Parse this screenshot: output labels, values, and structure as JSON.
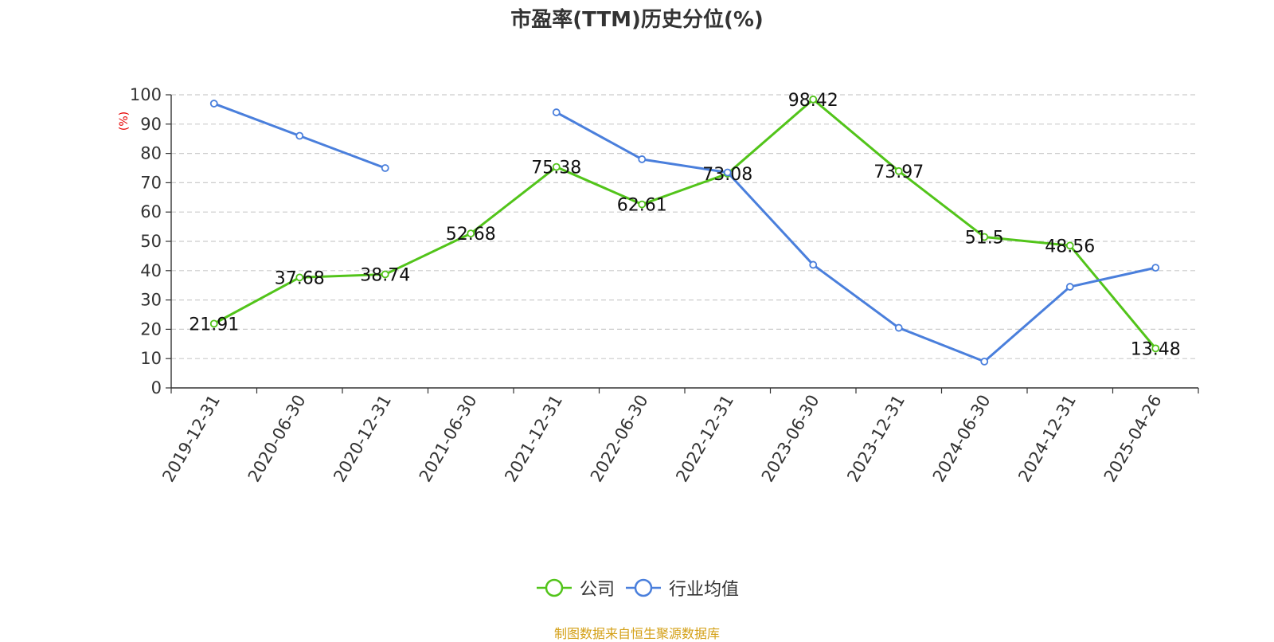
{
  "chart_data": {
    "type": "line",
    "title": "市盈率(TTM)历史分位(%)",
    "ylabel": "(%)",
    "xlabel": "",
    "ylim": [
      0,
      100
    ],
    "yticks": [
      0,
      10,
      20,
      30,
      40,
      50,
      60,
      70,
      80,
      90,
      100
    ],
    "categories": [
      "2019-12-31",
      "2020-06-30",
      "2020-12-31",
      "2021-06-30",
      "2021-12-31",
      "2022-06-30",
      "2022-12-31",
      "2023-06-30",
      "2023-12-31",
      "2024-06-30",
      "2024-12-31",
      "2025-04-26"
    ],
    "grid": true,
    "legend_position": "bottom",
    "series": [
      {
        "name": "公司",
        "color": "#52c41a",
        "show_labels": true,
        "values": [
          21.91,
          37.68,
          38.74,
          52.68,
          75.38,
          62.61,
          73.08,
          98.42,
          73.97,
          51.5,
          48.56,
          13.48
        ],
        "labels": [
          "21.91",
          "37.68",
          "38.74",
          "52.68",
          "75.38",
          "62.61",
          "73.08",
          "98.42",
          "73.97",
          "51.5",
          "48.56",
          "13.48"
        ]
      },
      {
        "name": "行业均值",
        "color": "#4a7fdc",
        "show_labels": false,
        "values": [
          97,
          86,
          75,
          null,
          94,
          78,
          73.5,
          42,
          20.5,
          9,
          34.5,
          41
        ]
      }
    ]
  },
  "source": "制图数据来自恒生聚源数据库"
}
